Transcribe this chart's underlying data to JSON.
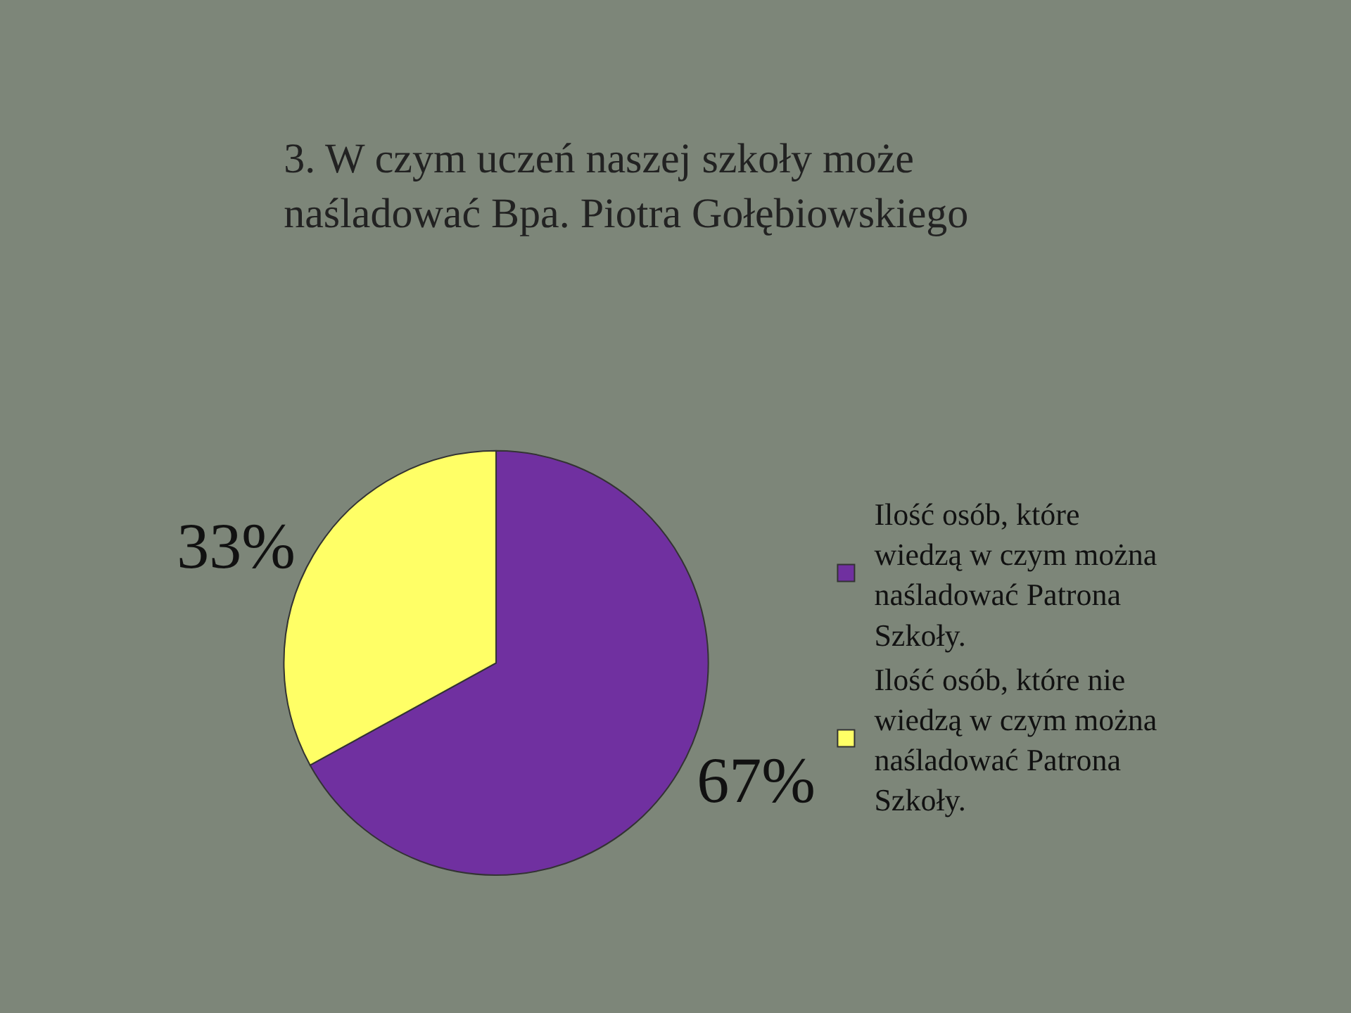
{
  "chart_data": {
    "type": "pie",
    "title": "3. W czym uczeń naszej szkoły może naśladować Bpa. Piotra Gołębiowskiego",
    "categories": [
      "Ilość osób, które wiedzą w czym można naśladować Patrona Szkoły.",
      "Ilość osób, które nie wiedzą w czym można naśladować Patrona Szkoły."
    ],
    "values": [
      67,
      33
    ],
    "colors": [
      "#7030a0",
      "#ffff66"
    ],
    "value_labels": [
      "67%",
      "33%"
    ],
    "legend": "right"
  }
}
